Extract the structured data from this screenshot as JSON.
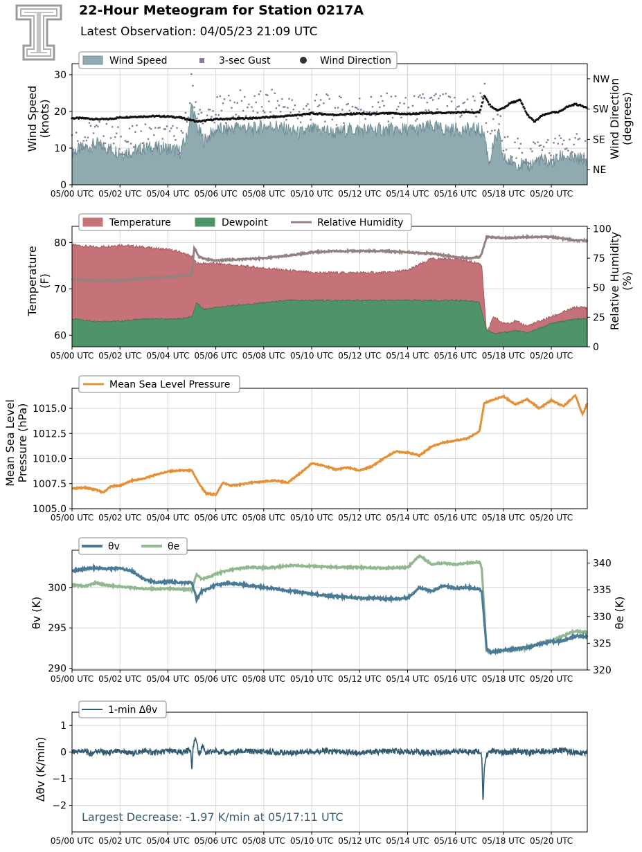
{
  "header": {
    "title": "22-Hour Meteogram for Station 0217A",
    "subtitle": "Latest Observation: 04/05/23 21:09 UTC"
  },
  "colors": {
    "wind_speed": "#8faab0",
    "wind_speed_line": "#6f8f95",
    "gust": "#8a7a99",
    "wind_dir": "#111111",
    "temperature": "#c57378",
    "dewpoint": "#4f9469",
    "rh": "#978080",
    "pressure": "#e59036",
    "theta_v": "#4a7a95",
    "theta_e": "#90b890",
    "dtheta": "#325a70",
    "annotation": "#325a70",
    "grid": "#d8d8d8"
  },
  "x_axis": {
    "range": [
      0,
      21.5
    ],
    "ticks": [
      0,
      2,
      4,
      6,
      8,
      10,
      12,
      14,
      16,
      18,
      20
    ],
    "tick_labels": [
      "05/00 UTC",
      "05/02 UTC",
      "05/04 UTC",
      "05/06 UTC",
      "05/08 UTC",
      "05/10 UTC",
      "05/12 UTC",
      "05/14 UTC",
      "05/16 UTC",
      "05/18 UTC",
      "05/20 UTC"
    ]
  },
  "chart_data": [
    {
      "type": "area",
      "ylabel": [
        "Wind Speed",
        "(knots)"
      ],
      "ylim": [
        0,
        33
      ],
      "yticks": [
        0,
        10,
        20,
        30
      ],
      "y2label": [
        "Wind Direction",
        "(degrees)"
      ],
      "y2ticks": [
        "NE",
        "SE",
        "SW",
        "NW"
      ],
      "y2tick_values": [
        45,
        135,
        225,
        315
      ],
      "y2lim": [
        0,
        360
      ],
      "legend": [
        "Wind Speed",
        "3-sec Gust",
        "Wind Direction"
      ],
      "series": [
        {
          "name": "Wind Speed",
          "x": [
            0,
            0.5,
            1,
            1.5,
            2,
            2.5,
            3,
            3.5,
            4,
            4.5,
            4.8,
            5,
            5.2,
            5.5,
            6,
            6.5,
            7,
            7.5,
            8,
            8.5,
            9,
            9.5,
            10,
            10.5,
            11,
            11.5,
            12,
            12.5,
            13,
            13.5,
            14,
            14.5,
            15,
            15.5,
            16,
            16.5,
            17,
            17.2,
            17.4,
            17.6,
            17.8,
            18,
            18.5,
            19,
            19.5,
            20,
            20.5,
            21,
            21.5
          ],
          "values": [
            9,
            10,
            11,
            10,
            9,
            9,
            10,
            10,
            10,
            9,
            13,
            22,
            16,
            12,
            15,
            15,
            16,
            15,
            16,
            16,
            15,
            14,
            15,
            15,
            14,
            15,
            15,
            15,
            15,
            15,
            15,
            15,
            16,
            15,
            15,
            15,
            15,
            14,
            6,
            11,
            14,
            7,
            6,
            5,
            7,
            6,
            8,
            7,
            7
          ]
        },
        {
          "name": "3-sec Gust",
          "x": [
            0,
            0.5,
            1,
            1.5,
            2,
            2.5,
            3,
            3.5,
            4,
            4.5,
            4.8,
            5,
            5.2,
            5.5,
            6,
            6.5,
            7,
            7.5,
            8,
            8.5,
            9,
            9.5,
            10,
            10.5,
            11,
            11.5,
            12,
            12.5,
            13,
            13.5,
            14,
            14.5,
            15,
            15.5,
            16,
            16.5,
            17,
            17.2,
            17.4,
            17.6,
            17.8,
            18,
            18.5,
            19,
            19.5,
            20,
            20.5,
            21,
            21.5
          ],
          "values": [
            12,
            13,
            14,
            13,
            12,
            12,
            13,
            13,
            13,
            12,
            17,
            28,
            21,
            16,
            20,
            21,
            22,
            21,
            22,
            22,
            21,
            19,
            21,
            21,
            20,
            21,
            21,
            21,
            21,
            21,
            20,
            21,
            22,
            21,
            21,
            21,
            21,
            27,
            9,
            15,
            19,
            10,
            9,
            8,
            10,
            9,
            11,
            10,
            10
          ]
        },
        {
          "name": "Wind Direction",
          "x": [
            0,
            0.5,
            1,
            1.5,
            2,
            2.5,
            3,
            3.5,
            4,
            4.5,
            4.8,
            5,
            5.2,
            5.5,
            6,
            6.5,
            7,
            7.5,
            8,
            8.5,
            9,
            9.5,
            10,
            10.5,
            11,
            11.5,
            12,
            12.5,
            13,
            13.5,
            14,
            14.5,
            15,
            15.5,
            16,
            16.5,
            17,
            17.2,
            17.4,
            17.6,
            17.8,
            18,
            18.3,
            18.7,
            19,
            19.3,
            19.6,
            20,
            20.3,
            20.6,
            21,
            21.5
          ],
          "values": [
            198,
            198,
            195,
            195,
            200,
            202,
            203,
            204,
            203,
            200,
            195,
            192,
            188,
            190,
            195,
            196,
            197,
            198,
            200,
            202,
            205,
            208,
            212,
            210,
            208,
            210,
            212,
            210,
            212,
            212,
            210,
            212,
            214,
            214,
            215,
            216,
            214,
            266,
            240,
            225,
            222,
            228,
            243,
            252,
            208,
            187,
            205,
            215,
            215,
            230,
            240,
            230
          ]
        }
      ]
    },
    {
      "type": "area",
      "ylabel": [
        "Temperature",
        "(F)"
      ],
      "ylim": [
        57.5,
        83.5
      ],
      "yticks": [
        60,
        70,
        80
      ],
      "y2label": [
        "Relative Humidity",
        "(%)"
      ],
      "y2lim": [
        0,
        102
      ],
      "y2ticks": [
        0,
        25,
        50,
        75,
        100
      ],
      "legend": [
        "Temperature",
        "Dewpoint",
        "Relative Humidity"
      ],
      "series": [
        {
          "name": "Temperature",
          "x": [
            0,
            1,
            2,
            3,
            4,
            4.5,
            5,
            5.2,
            5.5,
            6,
            7,
            8,
            9,
            10,
            11,
            12,
            13,
            14,
            15,
            16,
            16.5,
            17,
            17.1,
            17.3,
            17.6,
            18,
            18.5,
            19,
            20,
            20.5,
            21,
            21.5
          ],
          "values": [
            79.5,
            79,
            79.5,
            79,
            78.5,
            78,
            77,
            75.5,
            75.5,
            75.5,
            75,
            74.5,
            74,
            73.5,
            73.5,
            73.5,
            73.5,
            74,
            76.5,
            76.5,
            76,
            75.5,
            75,
            60.5,
            64,
            62.5,
            63,
            62,
            64,
            65,
            66,
            66
          ]
        },
        {
          "name": "Dewpoint",
          "x": [
            0,
            1,
            2,
            3,
            4,
            4.5,
            5,
            5.2,
            5.5,
            6,
            7,
            8,
            9,
            10,
            11,
            12,
            13,
            14,
            15,
            16,
            16.5,
            17,
            17.1,
            17.3,
            17.6,
            18,
            18.5,
            19,
            20,
            20.5,
            21,
            21.5
          ],
          "values": [
            63.5,
            63,
            63,
            63.5,
            63.5,
            63.5,
            64,
            67,
            65.5,
            66,
            66.5,
            67,
            67.5,
            67.5,
            67.5,
            67.5,
            67.5,
            67.5,
            67.5,
            67.5,
            67.5,
            67,
            65,
            61,
            60.5,
            60.5,
            61,
            60.5,
            62.5,
            63,
            63.5,
            63.5
          ]
        },
        {
          "name": "Relative Humidity",
          "x": [
            0,
            1,
            2,
            3,
            4,
            4.5,
            5,
            5.1,
            5.3,
            5.6,
            6,
            7,
            8,
            9,
            10,
            11,
            12,
            13,
            14,
            15,
            16,
            16.5,
            17,
            17.1,
            17.3,
            18,
            19,
            20,
            21,
            21.5
          ],
          "values": [
            57,
            56,
            56,
            58,
            59,
            60,
            61,
            84,
            76,
            74,
            73,
            74,
            75,
            77,
            80,
            81,
            81,
            81,
            80,
            79,
            76,
            75,
            76,
            79,
            93,
            92,
            93,
            93,
            90,
            90
          ]
        }
      ]
    },
    {
      "type": "line",
      "ylabel": [
        "Mean Sea Level",
        "Pressure (hPa)"
      ],
      "ylim": [
        1005.0,
        1017.0
      ],
      "yticks": [
        1005.0,
        1007.5,
        1010.0,
        1012.5,
        1015.0
      ],
      "ytick_labels": [
        "1005.0",
        "1007.5",
        "1010.0",
        "1012.5",
        "1015.0"
      ],
      "legend": [
        "Mean Sea Level Pressure"
      ],
      "series": [
        {
          "name": "Mean Sea Level Pressure",
          "x": [
            0,
            0.5,
            1,
            1.3,
            1.6,
            2,
            2.5,
            3,
            3.5,
            4,
            4.5,
            5,
            5.3,
            5.6,
            6,
            6.3,
            6.6,
            7,
            7.5,
            8,
            8.5,
            9,
            9.5,
            10,
            10.5,
            11,
            11.5,
            12,
            12.5,
            13,
            13.5,
            14,
            14.5,
            15,
            15.5,
            16,
            16.5,
            17,
            17.2,
            17.5,
            18,
            18.5,
            19,
            19.5,
            20,
            20.5,
            21,
            21.3,
            21.5
          ],
          "values": [
            1007.0,
            1007.1,
            1006.9,
            1006.6,
            1007.2,
            1007.3,
            1007.8,
            1008.0,
            1008.4,
            1008.7,
            1008.8,
            1008.8,
            1007.5,
            1006.5,
            1006.4,
            1007.6,
            1007.3,
            1007.4,
            1007.6,
            1007.7,
            1007.8,
            1007.6,
            1008.5,
            1009.5,
            1009.3,
            1008.9,
            1009.1,
            1008.8,
            1009.2,
            1010.0,
            1010.7,
            1010.6,
            1010.3,
            1011.2,
            1011.6,
            1011.8,
            1012.0,
            1012.7,
            1015.5,
            1015.8,
            1016.2,
            1015.4,
            1015.9,
            1015.0,
            1015.8,
            1015.2,
            1016.3,
            1014.4,
            1015.5
          ]
        }
      ]
    },
    {
      "type": "line",
      "ylabel": [
        "θv (K)"
      ],
      "ylim": [
        289.8,
        304.6
      ],
      "yticks": [
        290,
        295,
        300
      ],
      "y2label": [
        "θe (K)"
      ],
      "y2lim": [
        320,
        342.4
      ],
      "y2ticks": [
        320,
        325,
        330,
        335,
        340
      ],
      "legend": [
        "θv",
        "θe"
      ],
      "series": [
        {
          "name": "θv",
          "x": [
            0,
            0.5,
            1,
            1.5,
            2,
            2.5,
            3,
            3.5,
            4,
            4.5,
            5,
            5.2,
            5.4,
            5.8,
            6,
            6.5,
            7,
            7.5,
            8,
            8.5,
            9,
            9.5,
            10,
            10.5,
            11,
            11.5,
            12,
            12.5,
            13,
            13.5,
            14,
            14.5,
            15,
            15.5,
            16,
            16.5,
            17,
            17.1,
            17.3,
            17.5,
            18,
            18.5,
            19,
            19.5,
            20,
            20.5,
            21,
            21.5
          ],
          "values": [
            302,
            302.3,
            302.4,
            302.3,
            302.4,
            302,
            301,
            300.6,
            300.7,
            300.6,
            300.6,
            298.5,
            299.5,
            300,
            300.3,
            300.5,
            300.4,
            300.2,
            300,
            299.8,
            299.6,
            299.4,
            299.2,
            299,
            298.9,
            298.8,
            298.7,
            298.7,
            298.6,
            298.6,
            298.7,
            300,
            299.5,
            300.2,
            299.9,
            300,
            299.8,
            299.5,
            292.3,
            292,
            292.2,
            292.4,
            292.6,
            293,
            293.3,
            293.4,
            294,
            293.9
          ]
        },
        {
          "name": "θe",
          "x": [
            0,
            0.5,
            1,
            1.5,
            2,
            2.5,
            3,
            3.5,
            4,
            4.5,
            5,
            5.2,
            5.4,
            5.8,
            6,
            6.5,
            7,
            7.5,
            8,
            8.5,
            9,
            9.5,
            10,
            10.5,
            11,
            11.5,
            12,
            12.5,
            13,
            13.5,
            14,
            14.5,
            15,
            15.5,
            16,
            16.5,
            17,
            17.1,
            17.3,
            17.5,
            18,
            18.5,
            19,
            19.5,
            20,
            20.5,
            21,
            21.5
          ],
          "values": [
            336,
            335.6,
            336.3,
            335.8,
            335.6,
            335.4,
            335.2,
            335.1,
            335.2,
            335.1,
            335,
            338,
            337,
            337.5,
            338,
            338.6,
            339,
            339.2,
            339.1,
            339.2,
            339.5,
            339.5,
            339.4,
            339.3,
            339.2,
            339.2,
            339.2,
            339.1,
            339.1,
            339.1,
            339.2,
            341.4,
            339.8,
            340,
            339.7,
            340,
            340.2,
            339,
            323.5,
            323.5,
            323.6,
            323.8,
            324,
            325,
            325.5,
            326.4,
            327.3,
            327
          ]
        }
      ]
    },
    {
      "type": "line",
      "ylabel": [
        "Δθv (K/min)"
      ],
      "ylim": [
        -3.0,
        1.5
      ],
      "yticks": [
        -2,
        -1,
        0,
        1
      ],
      "ytick_labels": [
        "−2",
        "−1",
        "0",
        "1"
      ],
      "legend": [
        "1-min Δθv"
      ],
      "series": [
        {
          "name": "1-min Δθv",
          "x": [
            0,
            0.5,
            0.8,
            1,
            1.5,
            2,
            2.5,
            3,
            3.5,
            4,
            4.5,
            4.95,
            5,
            5.05,
            5.15,
            5.3,
            5.45,
            5.6,
            6,
            6.5,
            7,
            8,
            9,
            10,
            11,
            12,
            13,
            14,
            15,
            16,
            16.9,
            17.0,
            17.1,
            17.15,
            17.2,
            17.3,
            17.5,
            18,
            18.5,
            19,
            19.5,
            20,
            20.5,
            21,
            21.5
          ],
          "values": [
            0,
            0.05,
            -0.08,
            0.06,
            -0.04,
            0.03,
            -0.05,
            0.04,
            -0.03,
            0.05,
            -0.02,
            0.1,
            -0.72,
            0.15,
            0.55,
            -0.1,
            0.25,
            -0.05,
            0.05,
            -0.04,
            0.03,
            0.02,
            -0.03,
            0.04,
            0.02,
            -0.02,
            0.03,
            0.02,
            -0.03,
            0.03,
            0.02,
            0.03,
            -0.2,
            -1.97,
            -0.6,
            -0.1,
            0.05,
            -0.03,
            0.04,
            -0.02,
            0.05,
            0.03,
            0.08,
            -0.04,
            0.0
          ]
        }
      ],
      "annotation": "Largest Decrease: -1.97 K/min at 05/17:11 UTC"
    }
  ]
}
